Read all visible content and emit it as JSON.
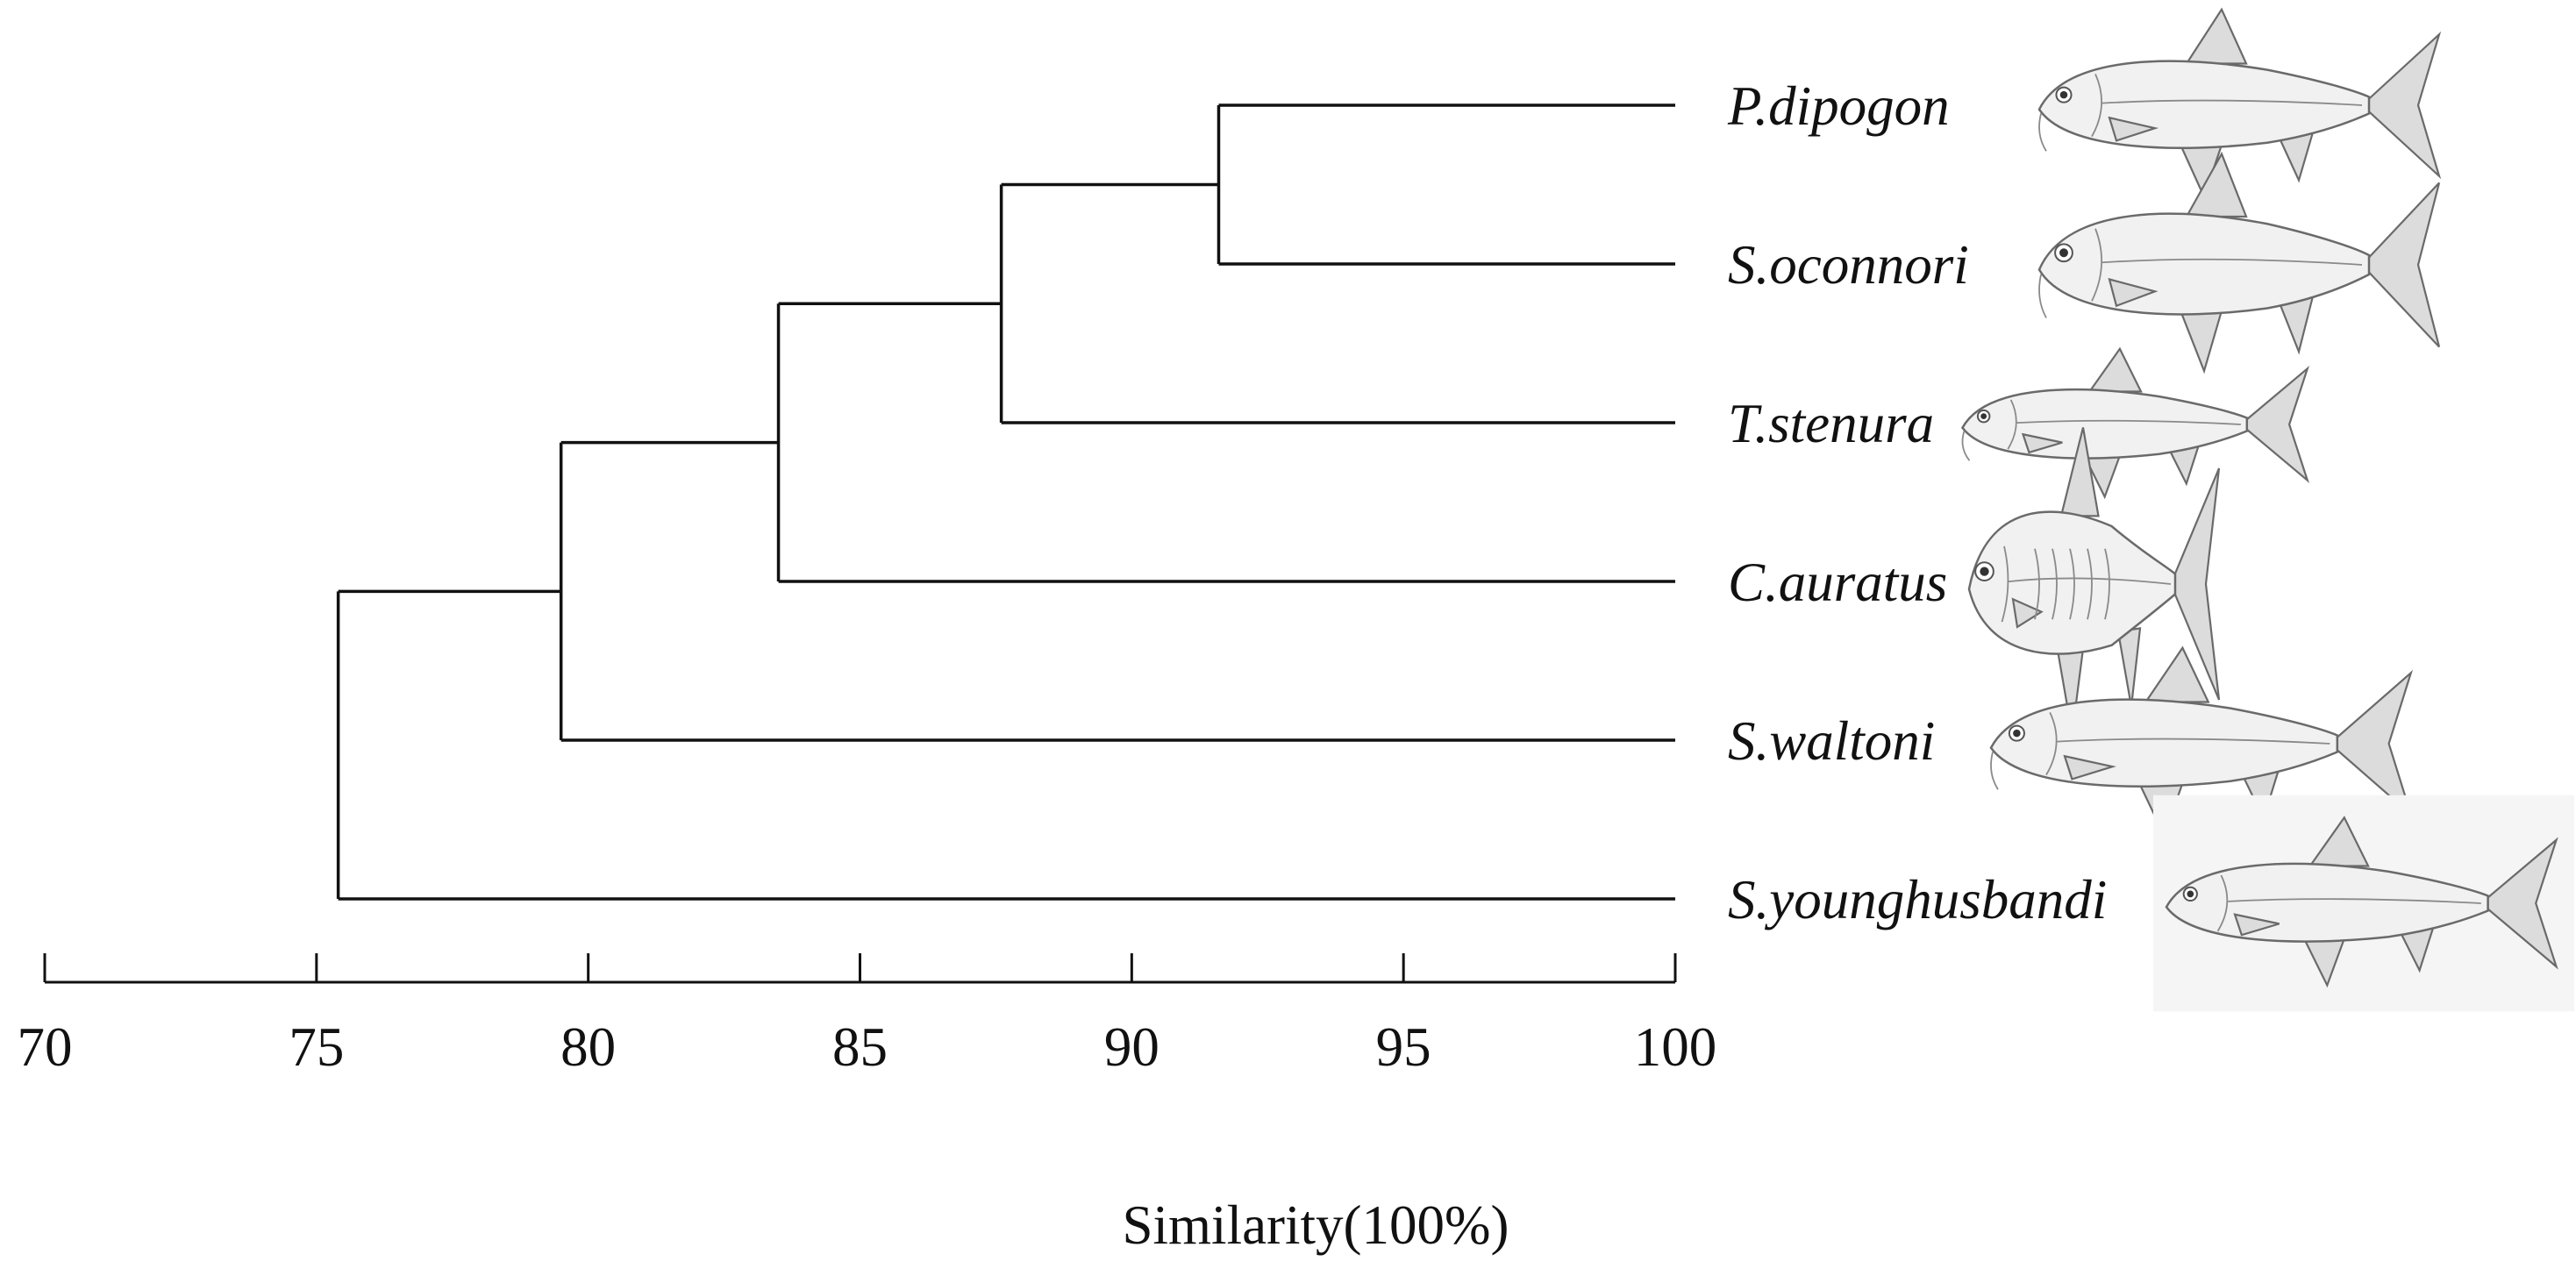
{
  "dendrogram": {
    "taxa": [
      {
        "label": "P.dipogon",
        "illustration": "fish-illustration"
      },
      {
        "label": "S.oconnori",
        "illustration": "fish-illustration"
      },
      {
        "label": "T.stenura",
        "illustration": "fish-illustration"
      },
      {
        "label": "C.auratus",
        "illustration": "fish-illustration"
      },
      {
        "label": "S.waltoni",
        "illustration": "fish-illustration"
      },
      {
        "label": "S.younghusbandi",
        "illustration": "fish-illustration"
      }
    ],
    "merges": [
      {
        "members": [
          "P.dipogon",
          "S.oconnori"
        ],
        "similarity": 91.6
      },
      {
        "members": [
          "P.dipogon",
          "S.oconnori",
          "T.stenura"
        ],
        "similarity": 87.6
      },
      {
        "members": [
          "P.dipogon",
          "S.oconnori",
          "T.stenura",
          "C.auratus"
        ],
        "similarity": 83.5
      },
      {
        "members": [
          "P.dipogon",
          "S.oconnori",
          "T.stenura",
          "C.auratus",
          "S.waltoni"
        ],
        "similarity": 79.5
      },
      {
        "members": [
          "P.dipogon",
          "S.oconnori",
          "T.stenura",
          "C.auratus",
          "S.waltoni",
          "S.younghusbandi"
        ],
        "similarity": 75.4
      }
    ],
    "axis": {
      "title": "Similarity(100%)",
      "range": [
        70,
        100
      ],
      "ticks": [
        70,
        75,
        80,
        85,
        90,
        95,
        100
      ],
      "tick_labels": [
        "70",
        "75",
        "80",
        "85",
        "90",
        "95",
        "100"
      ]
    },
    "colors": {
      "line": "#111111",
      "text": "#111111"
    }
  }
}
